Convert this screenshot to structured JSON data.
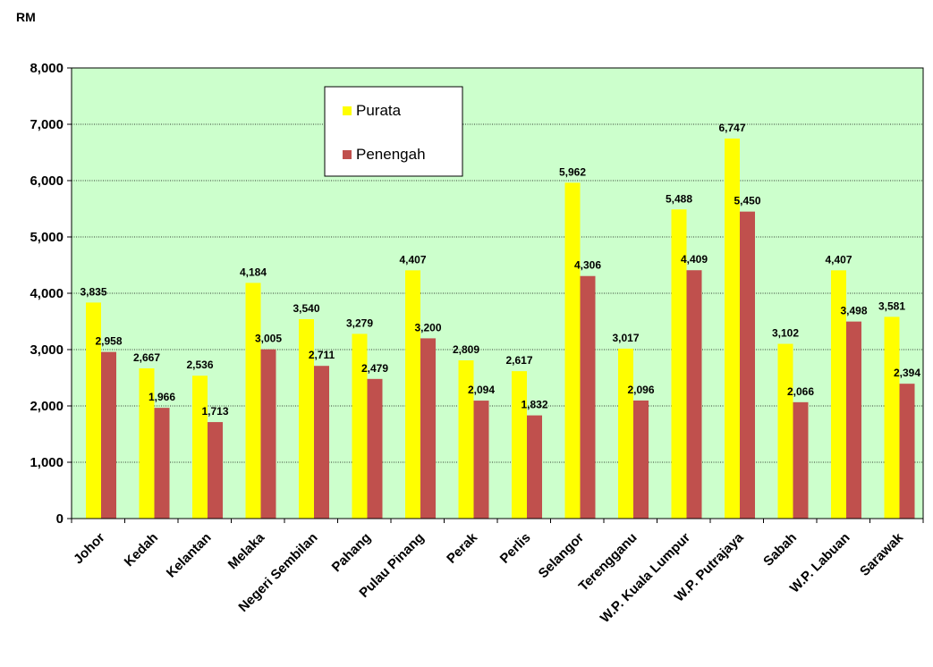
{
  "chart_data": {
    "type": "bar",
    "unit_label": "RM",
    "categories": [
      "Johor",
      "Kedah",
      "Kelantan",
      "Melaka",
      "Negeri Sembilan",
      "Pahang",
      "Pulau Pinang",
      "Perak",
      "Perlis",
      "Selangor",
      "Terengganu",
      "W.P. Kuala Lumpur",
      "W.P. Putrajaya",
      "Sabah",
      "W.P. Labuan",
      "Sarawak"
    ],
    "series": [
      {
        "name": "Purata",
        "color": "#ffff00",
        "values": [
          3835,
          2667,
          2536,
          4184,
          3540,
          3279,
          4407,
          2809,
          2617,
          5962,
          3017,
          5488,
          6747,
          3102,
          4407,
          3581
        ]
      },
      {
        "name": "Penengah",
        "color": "#c0504d",
        "values": [
          2958,
          1966,
          1713,
          3005,
          2711,
          2479,
          3200,
          2094,
          1832,
          4306,
          2096,
          4409,
          5450,
          2066,
          3498,
          2394
        ]
      }
    ],
    "value_labels": [
      [
        "3,835",
        "2,667",
        "2,536",
        "4,184",
        "3,540",
        "3,279",
        "4,407",
        "2,809",
        "2,617",
        "5,962",
        "3,017",
        "5,488",
        "6,747",
        "3,102",
        "4,407",
        "3,581"
      ],
      [
        "2,958",
        "1,966",
        "1,713",
        "3,005",
        "2,711",
        "2,479",
        "3,200",
        "2,094",
        "1,832",
        "4,306",
        "2,096",
        "4,409",
        "5,450",
        "2,066",
        "3,498",
        "2,394"
      ]
    ],
    "yticks": [
      0,
      1000,
      2000,
      3000,
      4000,
      5000,
      6000,
      7000,
      8000
    ],
    "ytick_labels": [
      "0",
      "1,000",
      "2,000",
      "3,000",
      "4,000",
      "5,000",
      "6,000",
      "7,000",
      "8,000"
    ],
    "ylim": [
      0,
      8000
    ],
    "grid": true,
    "plot_background": "#ccffcc",
    "legend_position": "top-center",
    "title": "",
    "xlabel": "",
    "ylabel": ""
  }
}
